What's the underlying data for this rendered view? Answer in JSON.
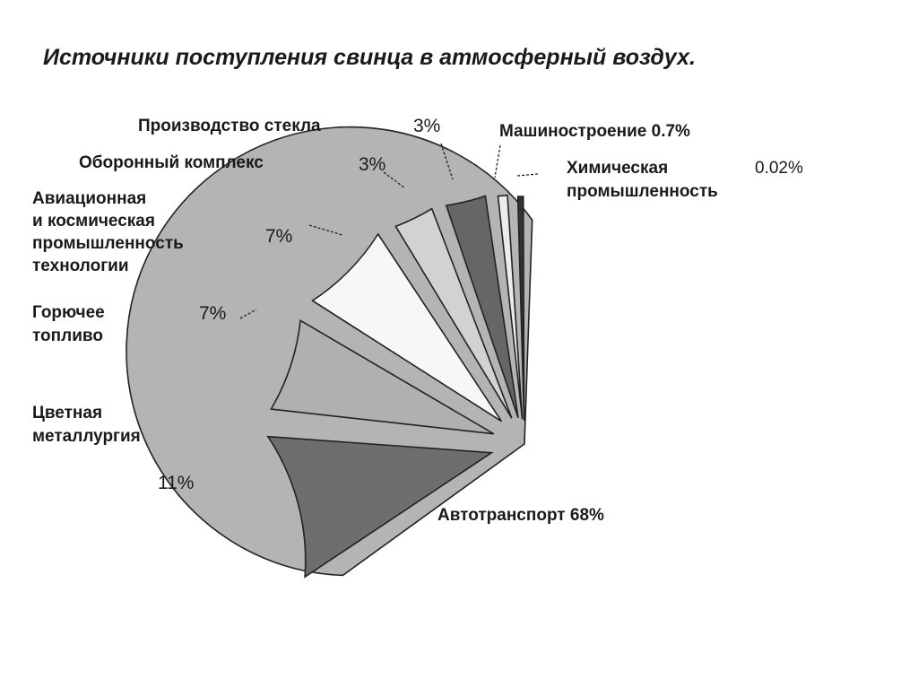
{
  "chart_data": {
    "type": "pie",
    "title": "Источники поступления свинца в атмосферный воздух.",
    "slices": [
      {
        "label": "Автотранспорт",
        "value": 68,
        "value_label": "68%",
        "color": "#b4b4b4"
      },
      {
        "label": "Цветная металлургия",
        "value": 11,
        "value_label": "11%",
        "color": "#6e6e6e"
      },
      {
        "label": "Горючее топливо",
        "value": 7,
        "value_label": "7%",
        "color": "#b0b0b0"
      },
      {
        "label": "Авиационная и космическая промышленность технологии",
        "value": 7,
        "value_label": "7%",
        "color": "#f7f7f7"
      },
      {
        "label": "Оборонный комплекс",
        "value": 3,
        "value_label": "3%",
        "color": "#d2d2d2"
      },
      {
        "label": "Производство стекла",
        "value": 3,
        "value_label": "3%",
        "color": "#666666"
      },
      {
        "label": "Машиностроение",
        "value": 0.7,
        "value_label": "0.7%",
        "color": "#ececec"
      },
      {
        "label": "Химическая промышленность",
        "value": 0.02,
        "value_label": "0.02%",
        "color": "#333333"
      }
    ],
    "labels_text": {
      "avtotransport": "Автотранспорт 68%",
      "tsvetnaya_1": "Цветная",
      "tsvetnaya_2": "металлургия",
      "goryuchee_1": "Горючее",
      "goryuchee_2": "топливо",
      "avia_1": "Авиационная",
      "avia_2": "и космическая",
      "avia_3": "промышленность",
      "avia_4": "технологии",
      "oboronny": "Оборонный комплекс",
      "steklo": "Производство стекла",
      "mashino": "Машиностроение 0.7%",
      "khim_1": "Химическая",
      "khim_2": "промышленность"
    }
  }
}
